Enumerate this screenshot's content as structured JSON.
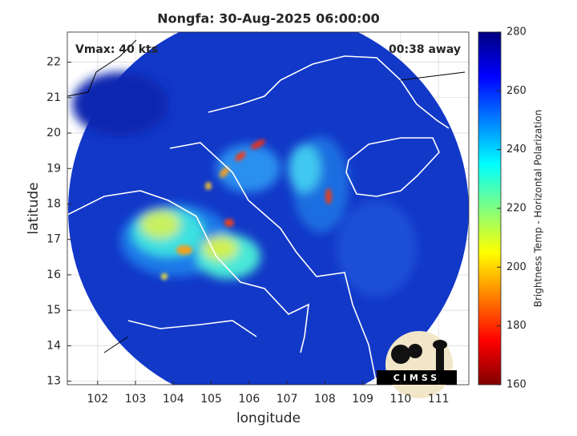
{
  "chart_data": {
    "type": "satellite-map",
    "title": "Nongfa: 30-Aug-2025 06:00:00",
    "annotations": [
      "Vmax: 40 kts",
      "00:38 away"
    ],
    "xlabel": "longitude",
    "ylabel": "latitude",
    "xlim": [
      101.2,
      111.8
    ],
    "ylim": [
      12.9,
      22.85
    ],
    "xticks": [
      102,
      103,
      104,
      105,
      106,
      107,
      108,
      109,
      110,
      111
    ],
    "yticks": [
      13,
      14,
      15,
      16,
      17,
      18,
      19,
      20,
      21,
      22
    ],
    "grid": true,
    "colorbar": {
      "label": "Brightness Temp - Horizontal Polarization",
      "lim": [
        160,
        280
      ],
      "ticks": [
        160,
        180,
        200,
        220,
        240,
        260,
        280
      ]
    },
    "logo_text": "CIMSS"
  }
}
